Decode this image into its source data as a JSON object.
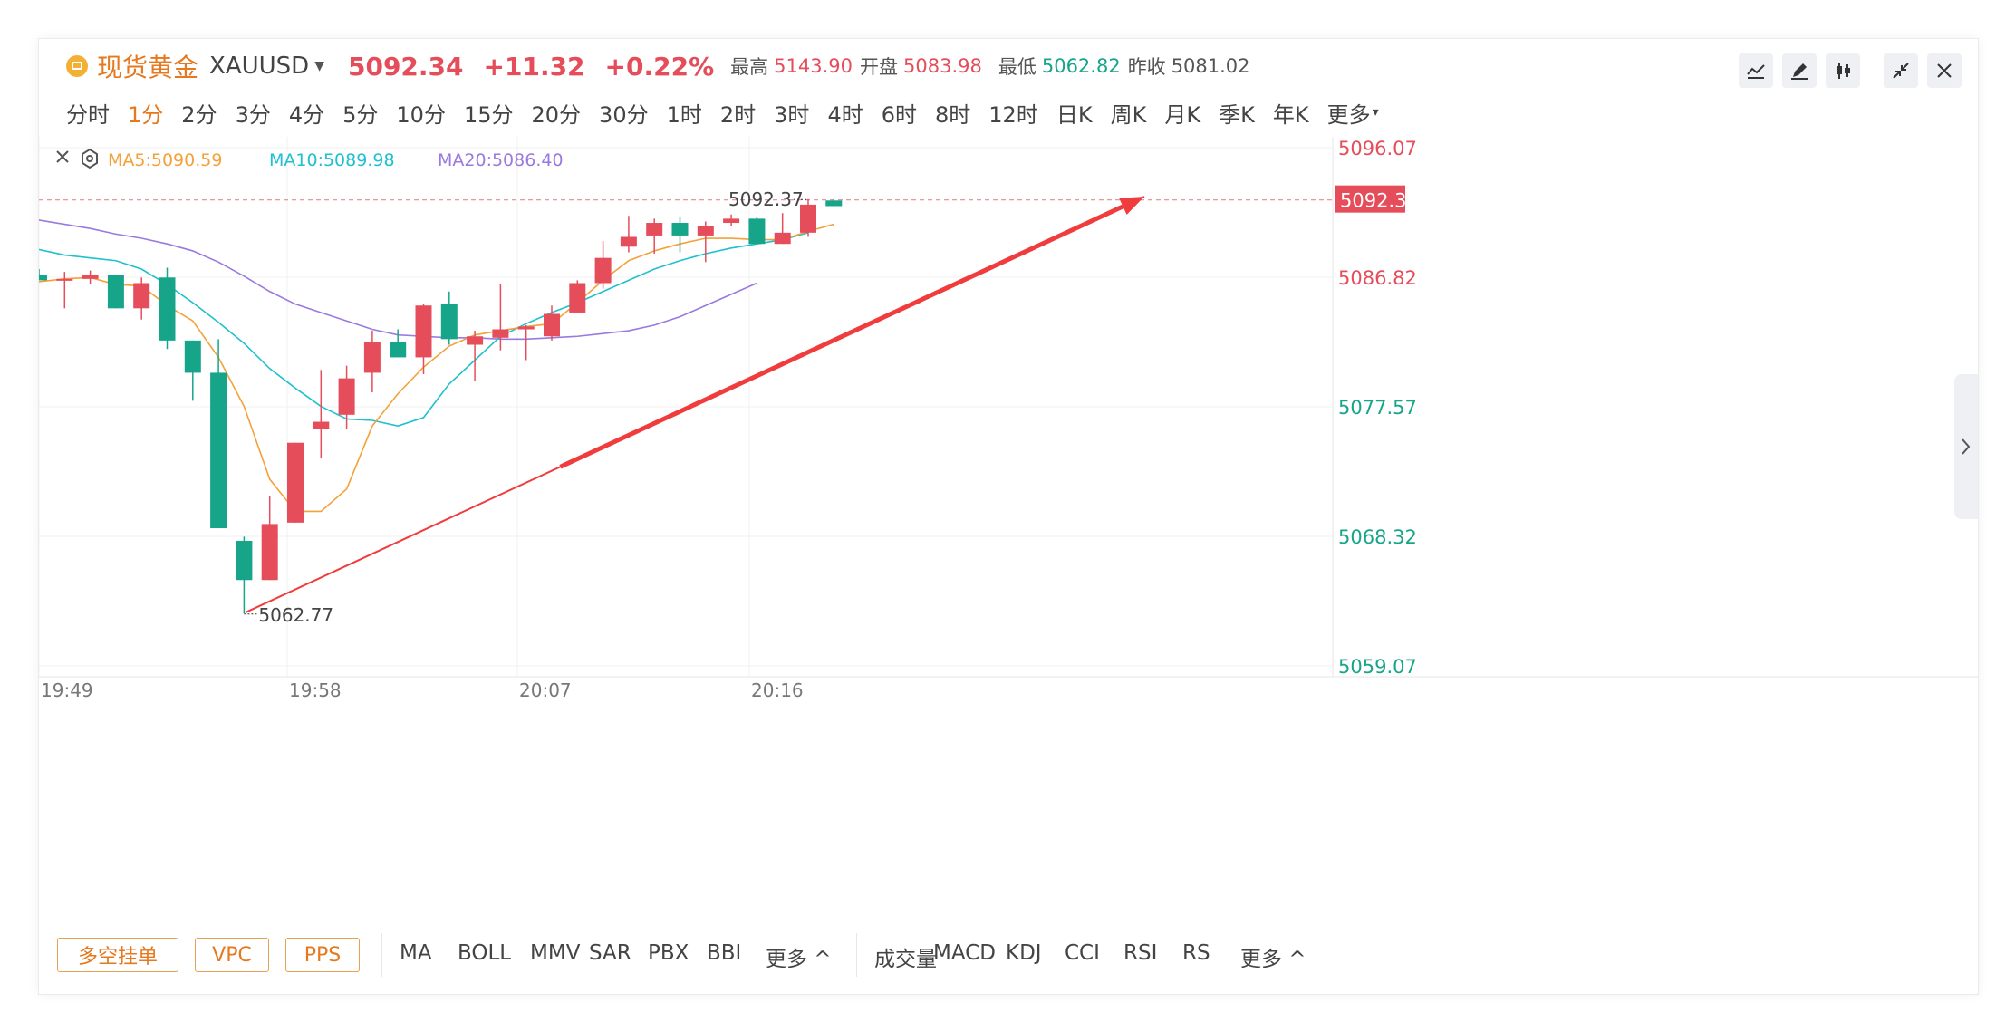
{
  "header": {
    "symbol_name": "现货黄金",
    "symbol_code": "XAUUSD",
    "price": "5092.34",
    "change": "+11.32",
    "change_pct": "+0.22%",
    "high_label": "最高",
    "high": "5143.90",
    "open_label": "开盘",
    "open": "5083.98",
    "low_label": "最低",
    "low": "5062.82",
    "prev_close_label": "昨收",
    "prev_close": "5081.02"
  },
  "toolbar_icons": [
    "line-chart-icon",
    "draw-pen-icon",
    "candlestick-icon",
    "collapse-icon",
    "close-icon"
  ],
  "timeframes": [
    "分时",
    "1分",
    "2分",
    "3分",
    "4分",
    "5分",
    "10分",
    "15分",
    "20分",
    "30分",
    "1时",
    "2时",
    "3时",
    "4时",
    "6时",
    "8时",
    "12时",
    "日K",
    "周K",
    "月K",
    "季K",
    "年K",
    "更多"
  ],
  "active_timeframe": "1分",
  "ma_legend": {
    "ma5": "MA5:5090.59",
    "ma10": "MA10:5089.98",
    "ma20": "MA20:5086.40"
  },
  "bottom": {
    "buttons": [
      "多空挂单",
      "VPC",
      "PPS"
    ],
    "main_indicators": [
      "MA",
      "BOLL",
      "MMV",
      "SAR",
      "PBX",
      "BBI",
      "更多 ^"
    ],
    "sub_indicators": [
      "成交量",
      "MACD",
      "KDJ",
      "CCI",
      "RSI",
      "RS",
      "更多 ^"
    ]
  },
  "colors": {
    "up": "#e54d5b",
    "down": "#17a58a",
    "ma5": "#f5a13a",
    "ma10": "#1fc0cf",
    "ma20": "#9b79de",
    "accent": "#e6781e",
    "arrow": "#f03c3c"
  },
  "chart_data": {
    "type": "candlestick",
    "x_ticks": [
      "19:49",
      "19:58",
      "20:07",
      "20:16"
    ],
    "y_ticks": [
      "5096.07",
      "5086.82",
      "5077.57",
      "5068.32",
      "5059.07"
    ],
    "y_range": [
      5059.07,
      5096.07
    ],
    "last_price_label": "5092.34",
    "high_annotation": "5092.37",
    "low_annotation": "5062.77",
    "candles": [
      {
        "o": 5087.0,
        "h": 5087.4,
        "l": 5086.6,
        "c": 5086.6
      },
      {
        "o": 5086.6,
        "h": 5087.2,
        "l": 5084.6,
        "c": 5086.7
      },
      {
        "o": 5086.7,
        "h": 5087.3,
        "l": 5086.3,
        "c": 5087.0
      },
      {
        "o": 5087.0,
        "h": 5087.0,
        "l": 5084.6,
        "c": 5084.6
      },
      {
        "o": 5084.6,
        "h": 5086.8,
        "l": 5083.8,
        "c": 5086.4
      },
      {
        "o": 5086.8,
        "h": 5087.5,
        "l": 5081.7,
        "c": 5082.3
      },
      {
        "o": 5082.3,
        "h": 5082.3,
        "l": 5078.0,
        "c": 5080.0
      },
      {
        "o": 5080.0,
        "h": 5082.4,
        "l": 5068.9,
        "c": 5068.9
      },
      {
        "o": 5068.0,
        "h": 5068.3,
        "l": 5062.8,
        "c": 5065.2
      },
      {
        "o": 5065.2,
        "h": 5071.2,
        "l": 5065.2,
        "c": 5069.2
      },
      {
        "o": 5069.3,
        "h": 5075.0,
        "l": 5069.3,
        "c": 5075.0
      },
      {
        "o": 5076.0,
        "h": 5080.2,
        "l": 5073.9,
        "c": 5076.5
      },
      {
        "o": 5077.0,
        "h": 5080.5,
        "l": 5076.0,
        "c": 5079.6
      },
      {
        "o": 5080.0,
        "h": 5083.0,
        "l": 5078.6,
        "c": 5082.2
      },
      {
        "o": 5082.2,
        "h": 5083.1,
        "l": 5081.1,
        "c": 5081.1
      },
      {
        "o": 5081.1,
        "h": 5084.9,
        "l": 5079.9,
        "c": 5084.8
      },
      {
        "o": 5084.9,
        "h": 5085.8,
        "l": 5082.0,
        "c": 5082.4
      },
      {
        "o": 5082.0,
        "h": 5083.0,
        "l": 5079.4,
        "c": 5082.6
      },
      {
        "o": 5082.5,
        "h": 5086.3,
        "l": 5081.6,
        "c": 5083.1
      },
      {
        "o": 5083.1,
        "h": 5083.4,
        "l": 5080.9,
        "c": 5083.3
      },
      {
        "o": 5082.6,
        "h": 5084.8,
        "l": 5082.3,
        "c": 5084.2
      },
      {
        "o": 5084.3,
        "h": 5086.6,
        "l": 5084.3,
        "c": 5086.4
      },
      {
        "o": 5086.4,
        "h": 5089.4,
        "l": 5086.0,
        "c": 5088.2
      },
      {
        "o": 5089.0,
        "h": 5091.2,
        "l": 5088.6,
        "c": 5089.7
      },
      {
        "o": 5089.8,
        "h": 5091.0,
        "l": 5088.5,
        "c": 5090.7
      },
      {
        "o": 5090.7,
        "h": 5091.1,
        "l": 5088.6,
        "c": 5089.8
      },
      {
        "o": 5089.8,
        "h": 5090.8,
        "l": 5087.9,
        "c": 5090.5
      },
      {
        "o": 5090.7,
        "h": 5091.3,
        "l": 5090.5,
        "c": 5091.0
      },
      {
        "o": 5091.0,
        "h": 5091.1,
        "l": 5089.2,
        "c": 5089.2
      },
      {
        "o": 5089.2,
        "h": 5091.4,
        "l": 5089.2,
        "c": 5090.0
      },
      {
        "o": 5090.0,
        "h": 5092.4,
        "l": 5089.7,
        "c": 5092.0
      },
      {
        "o": 5092.3,
        "h": 5092.4,
        "l": 5091.9,
        "c": 5091.9
      }
    ],
    "ma5": [
      5086.5,
      5086.7,
      5086.8,
      5086.3,
      5086.2,
      5084.8,
      5083.7,
      5081.1,
      5077.6,
      5072.4,
      5070.1,
      5070.1,
      5071.7,
      5076.2,
      5078.5,
      5080.4,
      5081.9,
      5082.7,
      5083.0,
      5083.3,
      5083.5,
      5085.0,
      5086.6,
      5088.0,
      5088.7,
      5089.2,
      5089.6,
      5089.6,
      5089.5,
      5089.5,
      5090.1,
      5090.6
    ],
    "ma10": [
      5088.8,
      5088.4,
      5088.2,
      5088.0,
      5087.4,
      5086.3,
      5085.0,
      5083.6,
      5082.1,
      5080.3,
      5078.9,
      5077.6,
      5076.7,
      5076.6,
      5076.2,
      5076.8,
      5079.2,
      5080.9,
      5082.6,
      5083.5,
      5084.3,
      5085.0,
      5085.8,
      5086.6,
      5087.4,
      5088.0,
      5088.5,
      5088.9,
      5089.2,
      5089.5,
      5090.0
    ],
    "ma20": [
      5090.9,
      5090.6,
      5090.3,
      5089.9,
      5089.6,
      5089.2,
      5088.7,
      5087.9,
      5086.9,
      5085.8,
      5084.9,
      5084.3,
      5083.7,
      5083.1,
      5082.7,
      5082.6,
      5082.5,
      5082.5,
      5082.4,
      5082.4,
      5082.5,
      5082.6,
      5082.8,
      5083.0,
      5083.4,
      5084.0,
      5084.8,
      5085.6,
      5086.4
    ]
  }
}
